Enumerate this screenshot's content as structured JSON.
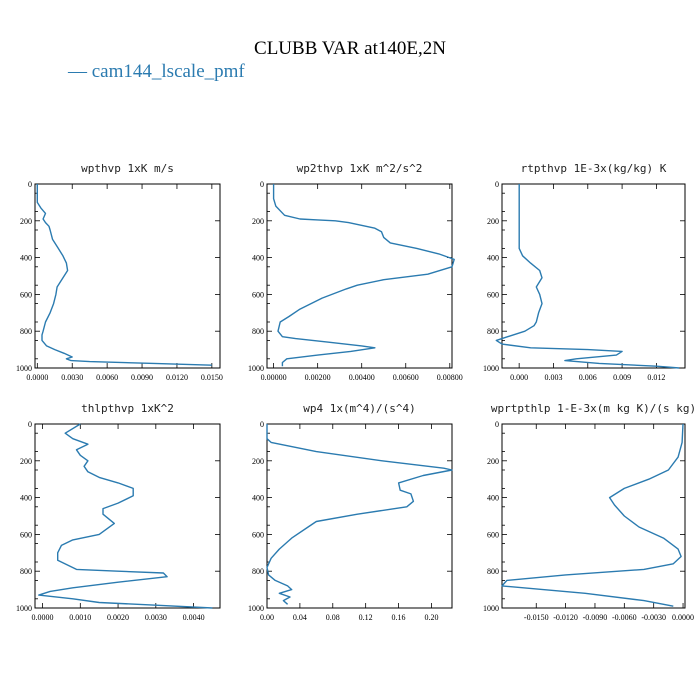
{
  "figure": {
    "title": "CLUBB VAR at140E,2N",
    "legend_label": "— cam144_lscale_pmf",
    "series_color": "#2b7bb0"
  },
  "chart_data": [
    {
      "type": "line",
      "title": "wpthvp  1xK m/s",
      "xlim": [
        -0.0002,
        0.0157
      ],
      "ylim": [
        1000,
        0
      ],
      "xticks": [
        0.0,
        0.003,
        0.006,
        0.009,
        0.012,
        0.015
      ],
      "xtick_labels": [
        "0.0000",
        "0.0030",
        "0.0060",
        "0.0090",
        "0.0120",
        "0.0150"
      ],
      "yticks": [
        0,
        200,
        400,
        600,
        800,
        1000
      ],
      "ytick_labels": [
        "0",
        "200",
        "400",
        "600",
        "800",
        "1000"
      ],
      "series": [
        {
          "x": [
            0.0,
            0.0,
            0.0003,
            0.0007,
            0.0005,
            0.0007,
            0.001,
            0.0011,
            0.0013,
            0.0018,
            0.0022,
            0.0025,
            0.0026,
            0.0023,
            0.0019,
            0.0017,
            0.0016,
            0.0014,
            0.0011,
            0.0007,
            0.0005,
            0.0004,
            0.0004,
            0.0008,
            0.0015,
            0.0023,
            0.003,
            0.0025,
            0.0029,
            0.0045,
            0.01,
            0.015
          ],
          "y": [
            0,
            100,
            130,
            160,
            190,
            210,
            230,
            250,
            300,
            350,
            390,
            430,
            470,
            500,
            540,
            560,
            600,
            650,
            700,
            750,
            800,
            820,
            850,
            880,
            900,
            920,
            940,
            950,
            960,
            965,
            975,
            985
          ]
        }
      ]
    },
    {
      "type": "line",
      "title": "wp2thvp  1xK m^2/s^2",
      "xlim": [
        -0.0003,
        0.0081
      ],
      "ylim": [
        1000,
        0
      ],
      "xticks": [
        0.0,
        0.002,
        0.004,
        0.006,
        0.008
      ],
      "xtick_labels": [
        "0.00000",
        "0.00200",
        "0.00400",
        "0.00600",
        "0.00800"
      ],
      "yticks": [
        0,
        200,
        400,
        600,
        800,
        1000
      ],
      "ytick_labels": [
        "0",
        "200",
        "400",
        "600",
        "800",
        "1000"
      ],
      "series": [
        {
          "x": [
            0.0,
            0.0,
            0.0001,
            0.0005,
            0.0012,
            0.002,
            0.0028,
            0.0034,
            0.0046,
            0.0049,
            0.005,
            0.0053,
            0.0065,
            0.0075,
            0.0082,
            0.0081,
            0.007,
            0.005,
            0.0038,
            0.0033,
            0.0022,
            0.0012,
            0.0007,
            0.0003,
            0.0002,
            0.0004,
            0.001,
            0.0025,
            0.004,
            0.0046,
            0.0035,
            0.002,
            0.0006,
            0.0004,
            0.0004
          ],
          "y": [
            0,
            80,
            120,
            170,
            190,
            195,
            200,
            210,
            240,
            260,
            290,
            320,
            350,
            380,
            410,
            450,
            490,
            520,
            550,
            570,
            620,
            680,
            720,
            750,
            800,
            830,
            840,
            860,
            880,
            890,
            910,
            930,
            950,
            970,
            990
          ]
        }
      ]
    },
    {
      "type": "line",
      "title": "rtpthvp  1E-3x(kg/kg) K",
      "xlim": [
        -0.0015,
        0.0145
      ],
      "ylim": [
        1000,
        0
      ],
      "xticks": [
        0.0,
        0.003,
        0.006,
        0.009,
        0.012
      ],
      "xtick_labels": [
        "0.000",
        "0.003",
        "0.006",
        "0.009",
        "0.012"
      ],
      "yticks": [
        0,
        200,
        400,
        600,
        800,
        1000
      ],
      "ytick_labels": [
        "0",
        "200",
        "400",
        "600",
        "800",
        "1000"
      ],
      "series": [
        {
          "x": [
            0.0,
            0.0,
            0.0,
            0.0,
            0.0003,
            0.001,
            0.0018,
            0.002,
            0.0015,
            0.0018,
            0.002,
            0.0017,
            0.0015,
            0.0013,
            0.0005,
            -0.001,
            -0.002,
            -0.0015,
            0.001,
            0.006,
            0.009,
            0.0085,
            0.005,
            0.004,
            0.007,
            0.012,
            0.014
          ],
          "y": [
            0,
            200,
            300,
            350,
            390,
            430,
            470,
            510,
            560,
            600,
            650,
            700,
            750,
            770,
            800,
            830,
            850,
            870,
            890,
            900,
            910,
            930,
            950,
            960,
            975,
            990,
            1000
          ]
        }
      ]
    },
    {
      "type": "line",
      "title": "thlpthvp  1xK^2",
      "xlim": [
        -0.0002,
        0.0047
      ],
      "ylim": [
        1000,
        0
      ],
      "xticks": [
        0.0,
        0.001,
        0.002,
        0.003,
        0.004
      ],
      "xtick_labels": [
        "0.0000",
        "0.0010",
        "0.0020",
        "0.0030",
        "0.0040"
      ],
      "yticks": [
        0,
        200,
        400,
        600,
        800,
        1000
      ],
      "ytick_labels": [
        "0",
        "200",
        "400",
        "600",
        "800",
        "1000"
      ],
      "series": [
        {
          "x": [
            0.001,
            0.0006,
            0.0008,
            0.0012,
            0.0009,
            0.001,
            0.0012,
            0.0011,
            0.0012,
            0.0015,
            0.002,
            0.0024,
            0.0024,
            0.002,
            0.0016,
            0.0016,
            0.0019,
            0.0015,
            0.0008,
            0.0005,
            0.0004,
            0.0004,
            0.0009,
            0.002,
            0.0032,
            0.0033,
            0.002,
            0.0008,
            0.0002,
            -0.0001,
            0.0008,
            0.0015,
            0.003,
            0.0045
          ],
          "y": [
            0,
            50,
            80,
            110,
            140,
            170,
            200,
            230,
            260,
            290,
            320,
            350,
            390,
            430,
            460,
            490,
            540,
            600,
            630,
            660,
            700,
            740,
            790,
            800,
            810,
            830,
            860,
            890,
            910,
            930,
            950,
            970,
            985,
            1000
          ]
        }
      ]
    },
    {
      "type": "line",
      "title": "wp4  1x(m^4)/(s^4)",
      "xlim": [
        0.0,
        0.225
      ],
      "ylim": [
        1000,
        0
      ],
      "xticks": [
        0.0,
        0.04,
        0.08,
        0.12,
        0.16,
        0.2
      ],
      "xtick_labels": [
        "0.00",
        "0.04",
        "0.08",
        "0.12",
        "0.16",
        "0.20"
      ],
      "yticks": [
        0,
        200,
        400,
        600,
        800,
        1000
      ],
      "ytick_labels": [
        "0",
        "200",
        "400",
        "600",
        "800",
        "1000"
      ],
      "series": [
        {
          "x": [
            0.0,
            0.0,
            0.005,
            0.06,
            0.14,
            0.215,
            0.225,
            0.19,
            0.16,
            0.162,
            0.175,
            0.178,
            0.17,
            0.11,
            0.06,
            0.05,
            0.03,
            0.015,
            0.005,
            0.0,
            0.002,
            0.01,
            0.025,
            0.03,
            0.015,
            0.028,
            0.02,
            0.025
          ],
          "y": [
            0,
            80,
            100,
            150,
            200,
            240,
            250,
            280,
            320,
            360,
            380,
            420,
            450,
            490,
            530,
            560,
            620,
            680,
            730,
            780,
            820,
            850,
            880,
            900,
            920,
            940,
            960,
            980
          ]
        }
      ]
    },
    {
      "type": "line",
      "title": "wprtpthlp  1-E-3x(m kg K)/(s kg)",
      "xlim": [
        -0.0185,
        0.0002
      ],
      "ylim": [
        1000,
        0
      ],
      "xticks": [
        -0.015,
        -0.012,
        -0.009,
        -0.006,
        -0.003,
        0.0
      ],
      "xtick_labels": [
        "-0.0150",
        "-0.0120",
        "-0.0090",
        "-0.0060",
        "-0.0030",
        "0.0000"
      ],
      "yticks": [
        0,
        200,
        400,
        600,
        800,
        1000
      ],
      "ytick_labels": [
        "0",
        "200",
        "400",
        "600",
        "800",
        "1000"
      ],
      "series": [
        {
          "x": [
            0.0,
            -0.0001,
            -0.0005,
            -0.0015,
            -0.0035,
            -0.006,
            -0.0075,
            -0.007,
            -0.006,
            -0.0045,
            -0.002,
            -0.0005,
            -0.0002,
            -0.001,
            -0.004,
            -0.012,
            -0.018,
            -0.0185,
            -0.01,
            -0.004,
            -0.001
          ],
          "y": [
            0,
            100,
            180,
            250,
            300,
            350,
            400,
            440,
            500,
            560,
            620,
            680,
            720,
            760,
            790,
            820,
            850,
            880,
            920,
            960,
            990
          ]
        }
      ]
    }
  ]
}
